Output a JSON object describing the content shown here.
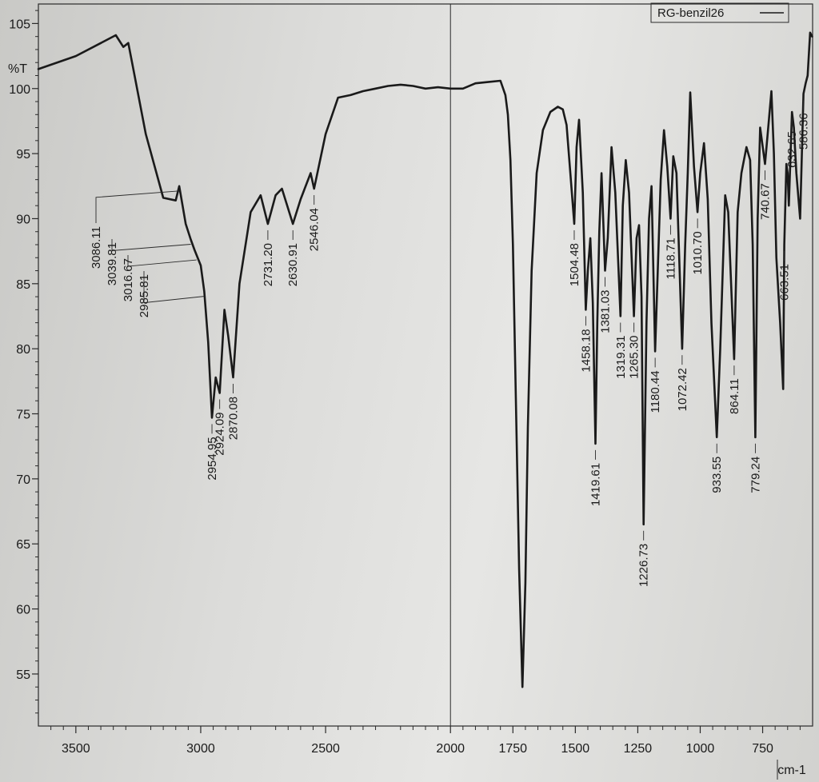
{
  "chart_data": {
    "type": "line",
    "title": "",
    "xlabel": "cm-1",
    "ylabel": "%T",
    "xlim": [
      3650,
      550
    ],
    "ylim": [
      51,
      106.5
    ],
    "x_ticks": [
      3500,
      3000,
      2500,
      2000,
      1750,
      1500,
      1250,
      1000,
      750
    ],
    "x_tick_labels": [
      "3500",
      "3000",
      "2500",
      "2000",
      "1750",
      "1500",
      "1250",
      "1000",
      "750"
    ],
    "y_ticks": [
      55,
      60,
      65,
      70,
      75,
      80,
      85,
      90,
      95,
      100,
      105
    ],
    "y_tick_labels": [
      "55",
      "60",
      "65",
      "70",
      "75",
      "80",
      "85",
      "90",
      "95",
      "100",
      "105"
    ],
    "legend": {
      "label": "RG-benzil26",
      "position": "top-right"
    },
    "series": [
      {
        "name": "RG-benzil26",
        "x": [
          3650,
          3500,
          3400,
          3340,
          3310,
          3290,
          3270,
          3220,
          3150,
          3100,
          3086.11,
          3060,
          3039.81,
          3025,
          3016.67,
          3000,
          2985.81,
          2970,
          2954.95,
          2940,
          2924.09,
          2905,
          2890,
          2870.08,
          2845,
          2800,
          2760,
          2731.2,
          2700,
          2675,
          2630.91,
          2600,
          2560,
          2546.04,
          2500,
          2450,
          2400,
          2350,
          2300,
          2250,
          2200,
          2150,
          2100,
          2050,
          2000,
          1950,
          1900,
          1850,
          1800,
          1780,
          1770,
          1760,
          1750,
          1740,
          1725,
          1712,
          1700,
          1690,
          1675,
          1655,
          1630,
          1600,
          1570,
          1550,
          1535,
          1520,
          1504.48,
          1495,
          1485,
          1470,
          1458.18,
          1450,
          1440,
          1430,
          1419.61,
          1412,
          1404,
          1395,
          1381.03,
          1370,
          1355,
          1340,
          1319.31,
          1310,
          1298,
          1285,
          1265.3,
          1255,
          1245,
          1235,
          1226.73,
          1215,
          1205,
          1195,
          1180.44,
          1170,
          1158,
          1145,
          1132,
          1118.71,
          1108,
          1095,
          1072.42,
          1060,
          1050,
          1040,
          1025,
          1010.7,
          1000,
          985,
          970,
          955,
          933.55,
          920,
          900,
          888,
          864.11,
          850,
          835,
          815,
          800,
          790,
          779.24,
          770,
          760,
          740.67,
          730,
          715,
          705,
          695,
          680,
          668,
          663.51,
          655,
          650,
          645,
          632.65,
          625,
          615,
          600,
          586.36,
          578,
          570,
          560,
          552
        ],
        "values": [
          101.5,
          102.5,
          103.5,
          104.1,
          103.2,
          103.5,
          101.5,
          96.5,
          91.6,
          91.4,
          92.5,
          89.6,
          88.4,
          87.6,
          87.2,
          86.4,
          84.4,
          80.5,
          74.7,
          77.8,
          76.6,
          83.0,
          81.0,
          77.8,
          85.0,
          90.5,
          91.8,
          89.6,
          91.8,
          92.3,
          89.6,
          91.5,
          93.5,
          92.3,
          96.5,
          99.3,
          99.5,
          99.8,
          100.0,
          100.2,
          100.3,
          100.2,
          100.0,
          100.1,
          100.0,
          100.0,
          100.4,
          100.5,
          100.6,
          99.5,
          98.0,
          94.5,
          88.0,
          78.0,
          63.0,
          54.0,
          62.0,
          74.0,
          86.0,
          93.5,
          96.8,
          98.2,
          98.6,
          98.4,
          97.2,
          93.5,
          89.6,
          95.5,
          97.6,
          92.0,
          83.0,
          86.0,
          88.5,
          83.5,
          72.7,
          82.0,
          89.0,
          93.5,
          86.0,
          88.5,
          95.5,
          92.0,
          82.5,
          91.0,
          94.5,
          92.0,
          82.5,
          88.5,
          89.5,
          84.0,
          66.5,
          82.0,
          90.0,
          92.5,
          79.8,
          86.0,
          93.0,
          96.8,
          94.0,
          90.0,
          94.8,
          93.5,
          80.0,
          88.0,
          93.5,
          99.7,
          94.0,
          90.5,
          93.5,
          95.8,
          91.5,
          82.0,
          73.2,
          80.0,
          91.8,
          90.5,
          79.2,
          90.5,
          93.5,
          95.5,
          94.5,
          88.0,
          73.2,
          90.0,
          97.0,
          94.2,
          96.5,
          99.8,
          95.0,
          87.0,
          82.0,
          76.9,
          88.0,
          94.2,
          93.5,
          91.0,
          98.2,
          97.0,
          93.5,
          90.0,
          99.6,
          100.4,
          101.0,
          104.3,
          104.0
        ]
      }
    ],
    "peak_labels": [
      {
        "x": 3086.11,
        "label": "3086.11"
      },
      {
        "x": 3039.81,
        "label": "3039.81"
      },
      {
        "x": 3016.67,
        "label": "3016.67"
      },
      {
        "x": 2985.81,
        "label": "2985.81"
      },
      {
        "x": 2954.95,
        "label": "2954.95"
      },
      {
        "x": 2924.09,
        "label": "2924.09"
      },
      {
        "x": 2870.08,
        "label": "2870.08"
      },
      {
        "x": 2731.2,
        "label": "2731.20"
      },
      {
        "x": 2630.91,
        "label": "2630.91"
      },
      {
        "x": 2546.04,
        "label": "2546.04"
      },
      {
        "x": 1504.48,
        "label": "1504.48"
      },
      {
        "x": 1458.18,
        "label": "1458.18"
      },
      {
        "x": 1419.61,
        "label": "1419.61"
      },
      {
        "x": 1381.03,
        "label": "1381.03"
      },
      {
        "x": 1319.31,
        "label": "1319.31"
      },
      {
        "x": 1265.3,
        "label": "1265.30"
      },
      {
        "x": 1226.73,
        "label": "1226.73"
      },
      {
        "x": 1180.44,
        "label": "1180.44"
      },
      {
        "x": 1118.71,
        "label": "1118.71"
      },
      {
        "x": 1072.42,
        "label": "1072.42"
      },
      {
        "x": 1010.7,
        "label": "1010.70"
      },
      {
        "x": 933.55,
        "label": "933.55"
      },
      {
        "x": 864.11,
        "label": "864.11"
      },
      {
        "x": 779.24,
        "label": "779.24"
      },
      {
        "x": 740.67,
        "label": "740.67"
      },
      {
        "x": 663.51,
        "label": "663.51"
      },
      {
        "x": 632.65,
        "label": "632.65"
      },
      {
        "x": 586.36,
        "label": "586.36"
      }
    ],
    "grid": false,
    "colors": {
      "line": "#1a1a1a",
      "axes": "#2a2a2a",
      "paper": "#dcdcda"
    }
  }
}
